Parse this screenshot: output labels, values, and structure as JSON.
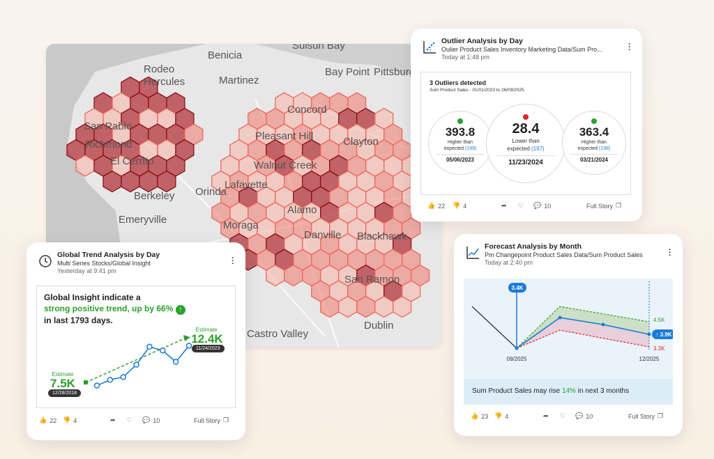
{
  "map": {
    "labels": [
      {
        "text": "Benicia"
      },
      {
        "text": "Suisun Bay"
      },
      {
        "text": "Rodeo"
      },
      {
        "text": "Hercules"
      },
      {
        "text": "Martinez"
      },
      {
        "text": "Bay Point"
      },
      {
        "text": "Pittsburg"
      },
      {
        "text": "Concord"
      },
      {
        "text": "San Pablo"
      },
      {
        "text": "Richmond"
      },
      {
        "text": "El Cerrito"
      },
      {
        "text": "Pleasant Hill"
      },
      {
        "text": "Clayton"
      },
      {
        "text": "Walnut Creek"
      },
      {
        "text": "Orinda"
      },
      {
        "text": "Lafayette"
      },
      {
        "text": "Berkeley"
      },
      {
        "text": "Emeryville"
      },
      {
        "text": "Moraga"
      },
      {
        "text": "Alamo"
      },
      {
        "text": "Danville"
      },
      {
        "text": "Blackhawk"
      },
      {
        "text": "San Ramon"
      },
      {
        "text": "Castro Valley"
      },
      {
        "text": "Dublin"
      }
    ]
  },
  "outlier": {
    "title": "Outlier Analysis by Day",
    "subtitle": "Oulier Product Sales Inventory Marketing Data/Sum Pro...",
    "time": "Today at 1:48 pm",
    "heading": "3 Outliers detected",
    "subheading": "Sum Product Sales - 01/01/2023 to 26/09/2025.",
    "items": [
      {
        "value": "393.8",
        "line1": "Higher than",
        "line2": "expected",
        "expected": "(199)",
        "date": "05/06/2023",
        "dot": "#2ba02b"
      },
      {
        "value": "28.4",
        "line1": "Lower than",
        "line2": "expected",
        "expected": "(197)",
        "date": "11/23/2024",
        "dot": "#e0242b"
      },
      {
        "value": "363.4",
        "line1": "Higher than",
        "line2": "expected",
        "expected": "(198)",
        "date": "03/21/2024",
        "dot": "#2ba02b"
      }
    ],
    "likes": "22",
    "dislikes": "4",
    "comments": "10",
    "full_story": "Full Story"
  },
  "trend": {
    "title": "Global Trend Analysis by Day",
    "subtitle": "Multi Series Stocks/Global Insight",
    "time": "Yesterday at 9:41 pm",
    "line1": "Global Insight indicate a",
    "line2_green": "strong positive trend, up by 66%",
    "line3": "in last 1793 days.",
    "est_label": "Estimate",
    "est_start_value": "7.5K",
    "est_start_date": "12/28/2018",
    "est_end_value": "12.4K",
    "est_end_date": "11/24/2023",
    "series": [
      0.08,
      0.2,
      0.26,
      0.52,
      0.9,
      0.82,
      0.58,
      0.92
    ],
    "likes": "22",
    "dislikes": "4",
    "comments": "10",
    "full_story": "Full Story"
  },
  "forecast": {
    "title": "Forecast Analysis by Month",
    "subtitle": "Pm Changepoint Product Sales Data/Sum Product Sales",
    "time": "Today at 2:40 pm",
    "marker_label": "3.4K",
    "x_start": "09/2025",
    "x_end": "12/2025",
    "upper_label": "4.5K",
    "current_label": "3.9K",
    "lower_label": "3.3K",
    "msg_pre": "Sum Product Sales may rise ",
    "msg_pct": "14%",
    "msg_post": " in next 3 months",
    "likes": "23",
    "dislikes": "4",
    "comments": "10",
    "full_story": "Full Story"
  },
  "colors": {
    "green": "#2ba02b",
    "red": "#e0242b",
    "blue": "#1a7bd6",
    "hex_dark": "#9b1b22",
    "hex_light": "#f08a7c"
  }
}
